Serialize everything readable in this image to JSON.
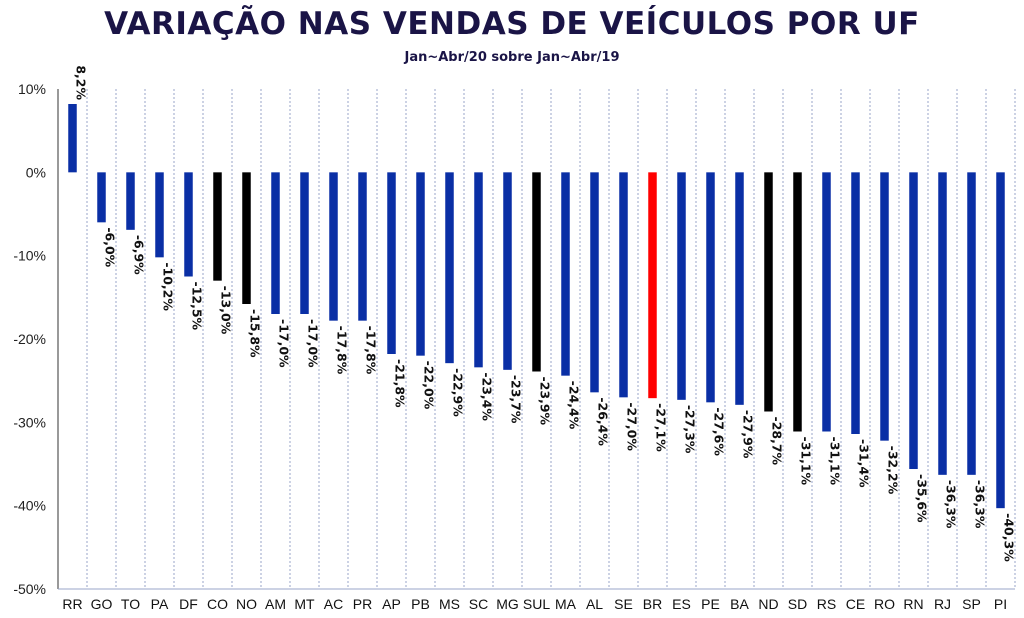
{
  "chart_data": {
    "type": "bar",
    "title": "VARIAÇÃO NAS VENDAS DE VEÍCULOS POR UF",
    "subtitle": "Jan~Abr/20 sobre Jan~Abr/19",
    "ylim": [
      -50,
      10
    ],
    "yticks": [
      10,
      0,
      -10,
      -20,
      -30,
      -40,
      -50
    ],
    "ytick_labels": [
      "10%",
      "0%",
      "-10%",
      "-20%",
      "-30%",
      "-40%",
      "-50%"
    ],
    "grid": "vertical dotted",
    "categories": [
      "RR",
      "GO",
      "TO",
      "PA",
      "DF",
      "CO",
      "NO",
      "AM",
      "MT",
      "AC",
      "PR",
      "AP",
      "PB",
      "MS",
      "SC",
      "MG",
      "SUL",
      "MA",
      "AL",
      "SE",
      "BR",
      "ES",
      "PE",
      "BA",
      "ND",
      "SD",
      "RS",
      "CE",
      "RO",
      "RN",
      "RJ",
      "SP",
      "PI"
    ],
    "values": [
      8.2,
      -6.0,
      -6.9,
      -10.2,
      -12.5,
      -13.0,
      -15.8,
      -17.0,
      -17.0,
      -17.8,
      -17.8,
      -21.8,
      -22.0,
      -22.9,
      -23.4,
      -23.7,
      -23.9,
      -24.4,
      -26.4,
      -27.0,
      -27.1,
      -27.3,
      -27.6,
      -27.9,
      -28.7,
      -31.1,
      -31.1,
      -31.4,
      -32.2,
      -35.6,
      -36.3,
      -36.3,
      -40.3
    ],
    "labels": [
      "8,2%",
      "-6,0%",
      "-6,9%",
      "-10,2%",
      "-12,5%",
      "-13,0%",
      "-15,8%",
      "-17,0%",
      "-17,0%",
      "-17,8%",
      "-17,8%",
      "-21,8%",
      "-22,0%",
      "-22,9%",
      "-23,4%",
      "-23,7%",
      "-23,9%",
      "-24,4%",
      "-26,4%",
      "-27,0%",
      "-27,1%",
      "-27,3%",
      "-27,6%",
      "-27,9%",
      "-28,7%",
      "-31,1%",
      "-31,1%",
      "-31,4%",
      "-32,2%",
      "-35,6%",
      "-36,3%",
      "-36,3%",
      "-40,3%"
    ],
    "colors": {
      "state": "#0a2fa5",
      "region": "#000000",
      "national": "#ff0000"
    },
    "bar_color_keys": [
      "state",
      "state",
      "state",
      "state",
      "state",
      "region",
      "region",
      "state",
      "state",
      "state",
      "state",
      "state",
      "state",
      "state",
      "state",
      "state",
      "region",
      "state",
      "state",
      "state",
      "national",
      "state",
      "state",
      "state",
      "region",
      "region",
      "state",
      "state",
      "state",
      "state",
      "state",
      "state",
      "state"
    ]
  }
}
